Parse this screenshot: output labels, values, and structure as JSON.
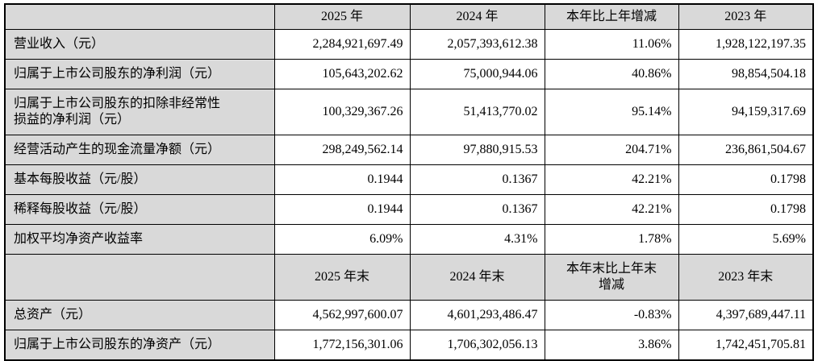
{
  "colors": {
    "header_fill": "#d9d9d9",
    "label_fill": "#d9d9d9",
    "value_fill": "#ffffff",
    "border": "#000000",
    "text": "#000000"
  },
  "table": {
    "sections": [
      {
        "header": [
          "",
          "2025 年",
          "2024 年",
          "本年比上年增减",
          "2023 年"
        ],
        "rows": [
          {
            "label": "营业收入（元）",
            "values": [
              "2,284,921,697.49",
              "2,057,393,612.38",
              "11.06%",
              "1,928,122,197.35"
            ]
          },
          {
            "label": "归属于上市公司股东的净利润（元）",
            "values": [
              "105,643,202.62",
              "75,000,944.06",
              "40.86%",
              "98,854,504.18"
            ]
          },
          {
            "label": "归属于上市公司股东的扣除非经常性\n损益的净利润（元）",
            "values": [
              "100,329,367.26",
              "51,413,770.02",
              "95.14%",
              "94,159,317.69"
            ]
          },
          {
            "label": "经营活动产生的现金流量净额（元）",
            "values": [
              "298,249,562.14",
              "97,880,915.53",
              "204.71%",
              "236,861,504.67"
            ]
          },
          {
            "label": "基本每股收益（元/股）",
            "values": [
              "0.1944",
              "0.1367",
              "42.21%",
              "0.1798"
            ]
          },
          {
            "label": "稀释每股收益（元/股）",
            "values": [
              "0.1944",
              "0.1367",
              "42.21%",
              "0.1798"
            ]
          },
          {
            "label": "加权平均净资产收益率",
            "values": [
              "6.09%",
              "4.31%",
              "1.78%",
              "5.69%"
            ]
          }
        ]
      },
      {
        "header": [
          "",
          "2025 年末",
          "2024 年末",
          "本年末比上年末\n增减",
          "2023 年末"
        ],
        "rows": [
          {
            "label": "总资产（元）",
            "values": [
              "4,562,997,600.07",
              "4,601,293,486.47",
              "-0.83%",
              "4,397,689,447.11"
            ]
          },
          {
            "label": "归属于上市公司股东的净资产（元）",
            "values": [
              "1,772,156,301.06",
              "1,706,302,056.13",
              "3.86%",
              "1,742,451,705.81"
            ]
          }
        ]
      }
    ]
  }
}
